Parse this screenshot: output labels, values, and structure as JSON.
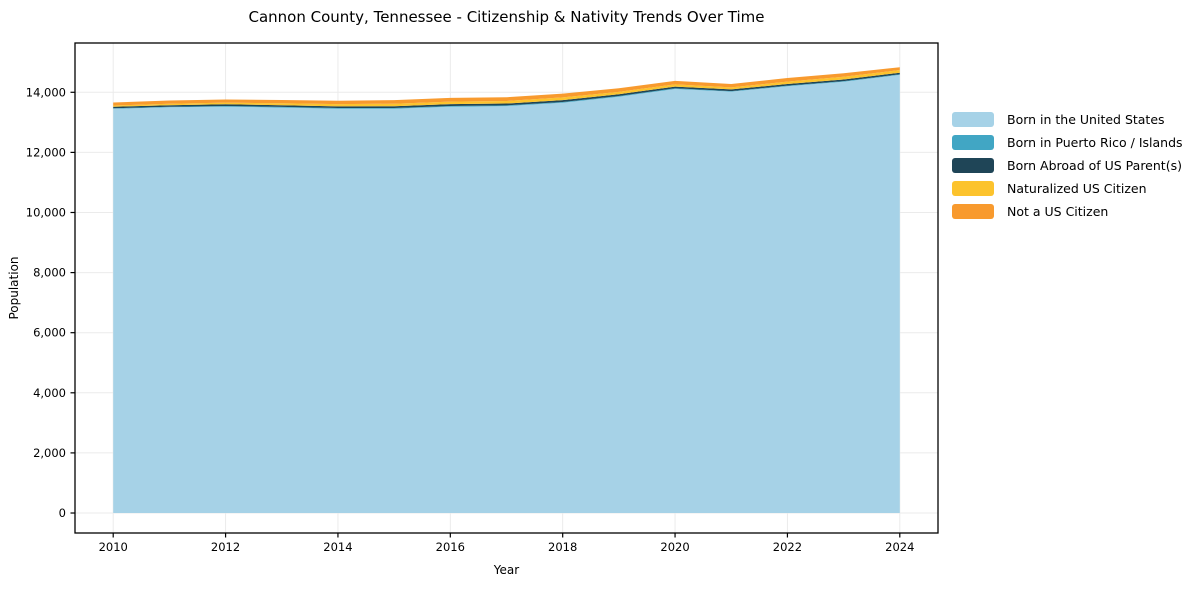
{
  "chart_data": {
    "type": "area",
    "stacked": true,
    "title": "Cannon County, Tennessee - Citizenship & Nativity Trends Over Time",
    "xlabel": "Year",
    "ylabel": "Population",
    "x": [
      2010,
      2011,
      2012,
      2013,
      2014,
      2015,
      2016,
      2017,
      2018,
      2019,
      2020,
      2021,
      2022,
      2023,
      2024
    ],
    "series": [
      {
        "name": "Born in the United States",
        "color": "#a6d2e7",
        "values": [
          13450,
          13500,
          13520,
          13490,
          13450,
          13450,
          13520,
          13540,
          13650,
          13850,
          14110,
          14020,
          14200,
          14350,
          14580
        ]
      },
      {
        "name": "Born in Puerto Rico / Islands",
        "color": "#41a6c4",
        "values": [
          20,
          20,
          25,
          25,
          25,
          25,
          25,
          25,
          25,
          25,
          25,
          20,
          20,
          20,
          20
        ]
      },
      {
        "name": "Born Abroad of US Parent(s)",
        "color": "#1f4557",
        "values": [
          50,
          50,
          55,
          55,
          55,
          60,
          60,
          60,
          65,
          60,
          55,
          55,
          55,
          55,
          50
        ]
      },
      {
        "name": "Naturalized US Citizen",
        "color": "#fcc32d",
        "values": [
          40,
          50,
          55,
          65,
          75,
          85,
          85,
          85,
          90,
          80,
          75,
          70,
          80,
          90,
          90
        ]
      },
      {
        "name": "Not a US Citizen",
        "color": "#f89a2e",
        "values": [
          100,
          105,
          105,
          110,
          115,
          120,
          125,
          125,
          125,
          120,
          115,
          110,
          120,
          120,
          95
        ]
      }
    ],
    "xticks": [
      2010,
      2012,
      2014,
      2016,
      2018,
      2020,
      2022,
      2024
    ],
    "yticks": [
      0,
      2000,
      4000,
      6000,
      8000,
      10000,
      12000,
      14000
    ],
    "xlim": [
      2009.32,
      2024.68
    ],
    "ylim": [
      -665,
      15640
    ],
    "grid": true,
    "grid_color": "#ebebeb",
    "spine_color": "#000000",
    "tick_color": "#000000",
    "text_color": "#000000",
    "background": "#ffffff",
    "legend_position": "right of plot, no frame"
  }
}
